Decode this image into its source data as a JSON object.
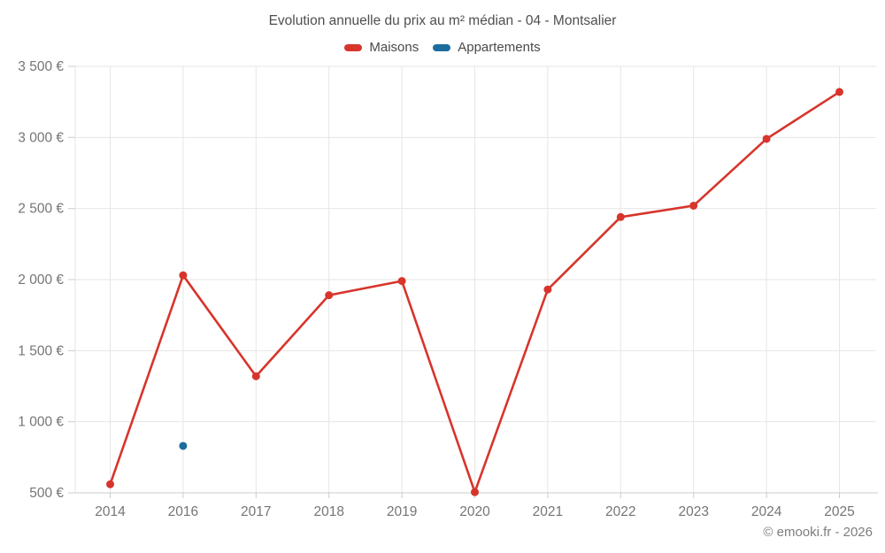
{
  "chart_data": {
    "type": "line",
    "title": "Evolution annuelle du prix au m² médian - 04 - Montsalier",
    "categories": [
      "2014",
      "2016",
      "2017",
      "2018",
      "2019",
      "2020",
      "2021",
      "2022",
      "2023",
      "2024",
      "2025"
    ],
    "series": [
      {
        "name": "Maisons",
        "color": "#d7352c",
        "values": [
          560,
          2030,
          1320,
          1890,
          1990,
          505,
          1930,
          2440,
          2520,
          2990,
          3320
        ]
      },
      {
        "name": "Appartements",
        "color": "#1b6d9e",
        "values": [
          null,
          830,
          null,
          null,
          null,
          null,
          null,
          null,
          null,
          null,
          null
        ]
      }
    ],
    "y_ticks": [
      500,
      1000,
      1500,
      2000,
      2500,
      3000,
      3500
    ],
    "y_tick_labels": [
      "500 €",
      "1 000 €",
      "1 500 €",
      "2 000 €",
      "2 500 €",
      "3 000 €",
      "3 500 €"
    ],
    "ylim": [
      500,
      3500
    ],
    "unit": "€",
    "grid": true,
    "legend_position": "top",
    "footer": "© emooki.fr - 2026"
  }
}
